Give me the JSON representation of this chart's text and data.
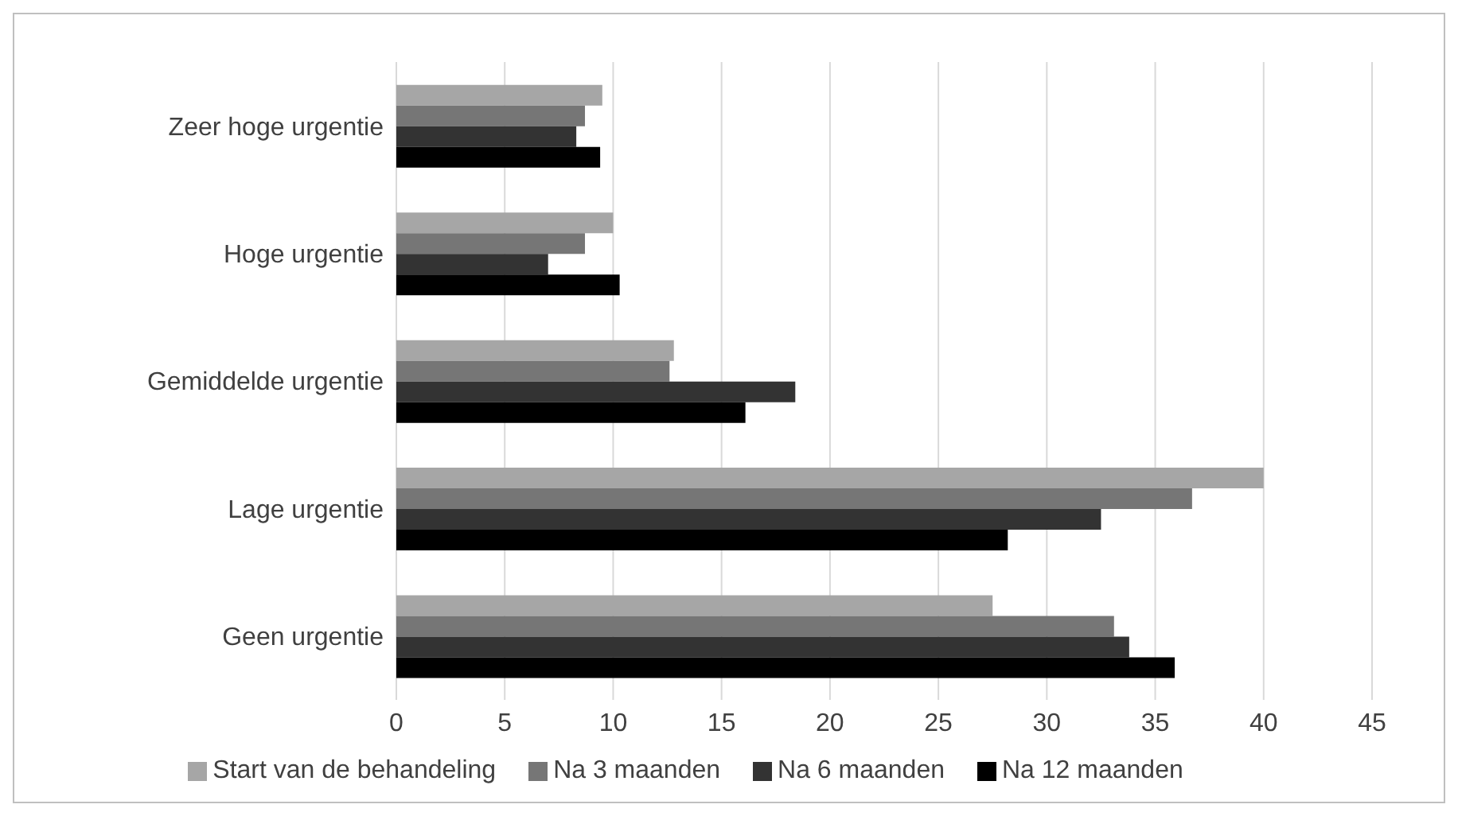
{
  "chart_data": {
    "type": "bar",
    "orientation": "horizontal",
    "categories": [
      "Zeer hoge urgentie",
      "Hoge urgentie",
      "Gemiddelde urgentie",
      "Lage urgentie",
      "Geen urgentie"
    ],
    "series": [
      {
        "name": "Start van de behandeling",
        "color": "#a6a6a6",
        "values": [
          9.5,
          10,
          12.8,
          40,
          27.5
        ]
      },
      {
        "name": "Na 3 maanden",
        "color": "#767676",
        "values": [
          8.7,
          8.7,
          12.6,
          36.7,
          33.1
        ]
      },
      {
        "name": "Na 6 maanden",
        "color": "#333333",
        "values": [
          8.3,
          7,
          18.4,
          32.5,
          33.8
        ]
      },
      {
        "name": "Na 12 maanden",
        "color": "#000000",
        "values": [
          9.4,
          10.3,
          16.1,
          28.2,
          35.9
        ]
      }
    ],
    "xlim": [
      0,
      45
    ],
    "xticks": [
      0,
      5,
      10,
      15,
      20,
      25,
      30,
      35,
      40,
      45
    ],
    "grid": "x",
    "legend": "bottom"
  }
}
